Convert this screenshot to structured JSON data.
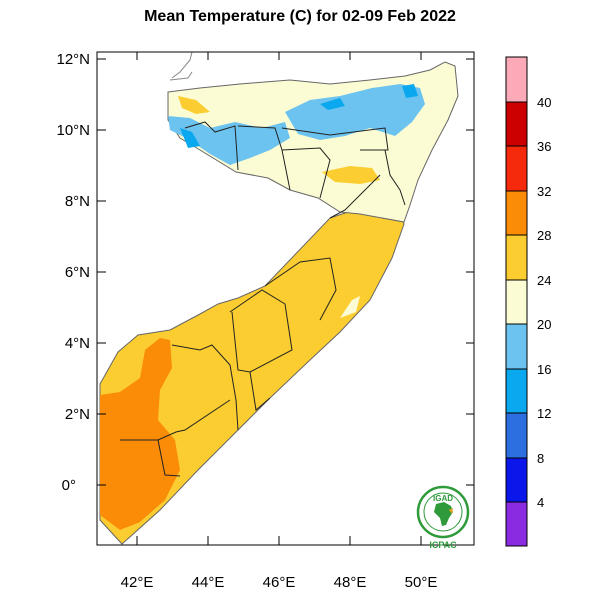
{
  "title": "Mean Temperature (C) for 02-09 Feb 2022",
  "map": {
    "region": "Somalia",
    "lon_ticks": [
      "42°E",
      "44°E",
      "46°E",
      "48°E",
      "50°E"
    ],
    "lat_ticks": [
      "12°N",
      "10°N",
      "8°N",
      "6°N",
      "4°N",
      "2°N",
      "0°"
    ],
    "lon_range": [
      41,
      51.5
    ],
    "lat_range": [
      -1.5,
      12.3
    ]
  },
  "colorbar": {
    "labels": [
      "4",
      "8",
      "12",
      "16",
      "20",
      "24",
      "28",
      "32",
      "36",
      "40"
    ],
    "colors": [
      "#8a2be2",
      "#0b16ea",
      "#2b6fe0",
      "#0aa8ee",
      "#6cc3ef",
      "#fcfcd4",
      "#fbcd30",
      "#fb8c08",
      "#f52a0c",
      "#cc0000",
      "#fcaab8"
    ]
  },
  "logo": {
    "top_text": "IGAD",
    "bottom_text": "ICPAC"
  }
}
